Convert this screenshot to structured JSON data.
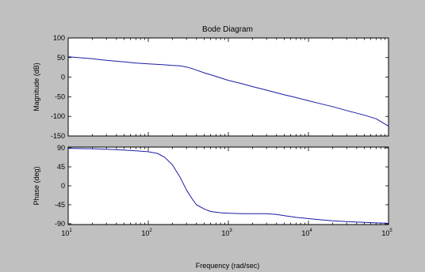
{
  "chart_data": {
    "type": "line",
    "title": "Bode Diagram",
    "xlabel": "Frequency (rad/sec)",
    "xscale": "log",
    "xlim": [
      10,
      100000
    ],
    "x_ticks": [
      {
        "base": "10",
        "exp": "1"
      },
      {
        "base": "10",
        "exp": "2"
      },
      {
        "base": "10",
        "exp": "3"
      },
      {
        "base": "10",
        "exp": "4"
      },
      {
        "base": "10",
        "exp": "5"
      }
    ],
    "grid": false,
    "line_color": "#1a1aa6",
    "background_color": "#c0c0c0",
    "plot_color": "#ffffff",
    "panels": [
      {
        "ylabel": "Magnitude (dB)",
        "ylim": [
          -150,
          100
        ],
        "y_ticks": [
          "100",
          "50",
          "0",
          "-50",
          "-100",
          "-150"
        ],
        "points": [
          [
            10,
            52
          ],
          [
            15,
            49
          ],
          [
            20,
            47
          ],
          [
            30,
            43
          ],
          [
            50,
            39
          ],
          [
            70,
            36
          ],
          [
            100,
            34
          ],
          [
            150,
            32
          ],
          [
            200,
            30
          ],
          [
            250,
            29
          ],
          [
            300,
            26
          ],
          [
            350,
            22
          ],
          [
            400,
            18
          ],
          [
            500,
            11
          ],
          [
            700,
            2
          ],
          [
            1000,
            -8
          ],
          [
            1500,
            -17
          ],
          [
            2000,
            -24
          ],
          [
            3000,
            -33
          ],
          [
            5000,
            -45
          ],
          [
            7000,
            -52
          ],
          [
            10000,
            -60
          ],
          [
            15000,
            -69
          ],
          [
            20000,
            -75
          ],
          [
            30000,
            -85
          ],
          [
            50000,
            -97
          ],
          [
            70000,
            -106
          ],
          [
            100000,
            -125
          ]
        ]
      },
      {
        "ylabel": "Phase (deg)",
        "ylim": [
          -92,
          92
        ],
        "y_ticks": [
          "90",
          "45",
          "0",
          "-45",
          "-90"
        ],
        "points": [
          [
            10,
            89
          ],
          [
            20,
            88
          ],
          [
            40,
            86
          ],
          [
            70,
            83
          ],
          [
            100,
            81
          ],
          [
            130,
            77
          ],
          [
            160,
            68
          ],
          [
            200,
            50
          ],
          [
            250,
            20
          ],
          [
            300,
            -10
          ],
          [
            350,
            -30
          ],
          [
            400,
            -45
          ],
          [
            500,
            -55
          ],
          [
            600,
            -61
          ],
          [
            800,
            -64
          ],
          [
            1000,
            -65
          ],
          [
            1500,
            -66
          ],
          [
            2000,
            -66
          ],
          [
            3000,
            -66
          ],
          [
            4000,
            -68
          ],
          [
            5000,
            -71
          ],
          [
            7000,
            -75
          ],
          [
            10000,
            -78
          ],
          [
            15000,
            -81
          ],
          [
            20000,
            -83
          ],
          [
            30000,
            -85
          ],
          [
            50000,
            -87
          ],
          [
            70000,
            -88
          ],
          [
            100000,
            -89
          ]
        ]
      }
    ]
  }
}
